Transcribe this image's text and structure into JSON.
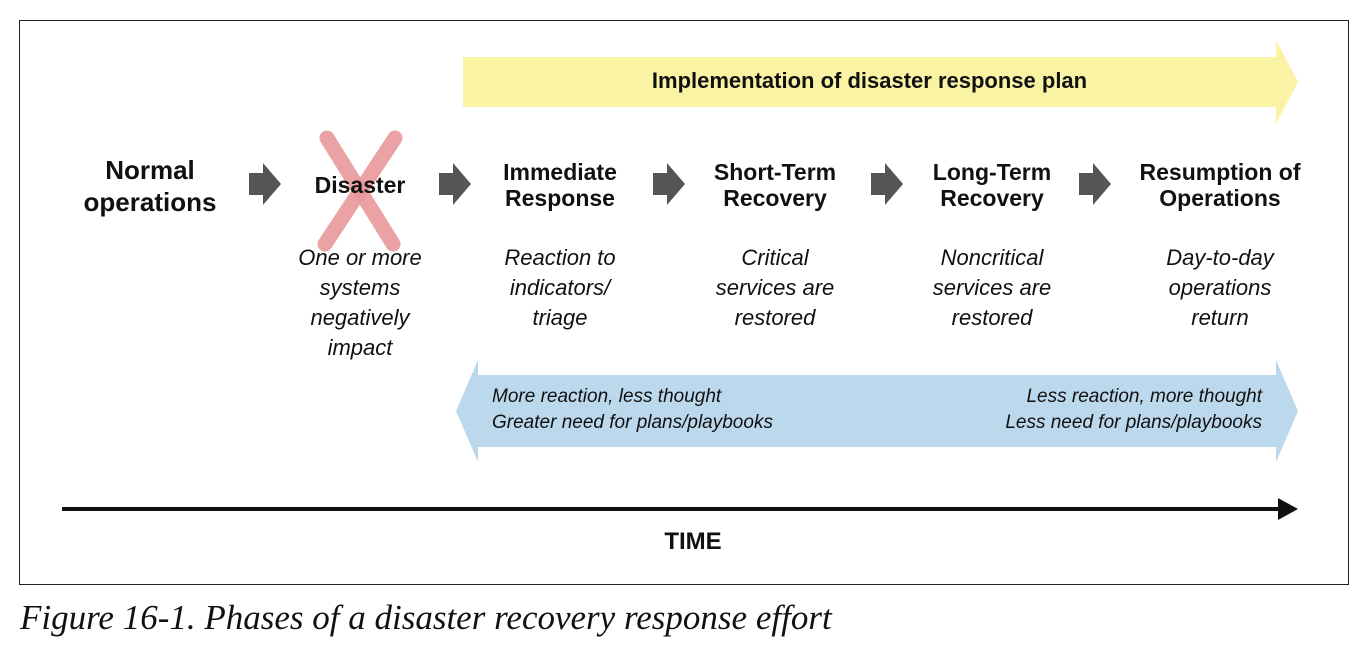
{
  "banner": {
    "label": "Implementation of disaster response plan",
    "color": "#fbf3a4"
  },
  "phases": [
    {
      "title": "Normal\noperations",
      "description": ""
    },
    {
      "title": "Disaster",
      "description": "One or more\nsystems\nnegatively\nimpact"
    },
    {
      "title": "Immediate\nResponse",
      "description": "Reaction to\nindicators/\ntriage"
    },
    {
      "title": "Short-Term\nRecovery",
      "description": "Critical\nservices are\nrestored"
    },
    {
      "title": "Long-Term\nRecovery",
      "description": "Noncritical\nservices are\nrestored"
    },
    {
      "title": "Resumption of\nOperations",
      "description": "Day-to-day\noperations\nreturn"
    }
  ],
  "band": {
    "left": [
      "More reaction, less thought",
      "Greater need for plans/playbooks"
    ],
    "right": [
      "Less reaction, more thought",
      "Less need for plans/playbooks"
    ],
    "color": "#bcd8ec"
  },
  "timeline": {
    "label": "TIME"
  },
  "caption": "Figure 16-1. Phases of a disaster recovery response effort",
  "icons": {
    "step_arrow": "chevron-arrow-icon",
    "disaster_mark": "red-x-icon"
  },
  "colors": {
    "step_arrow": "#555555",
    "disaster_mark": "#e8999b"
  }
}
